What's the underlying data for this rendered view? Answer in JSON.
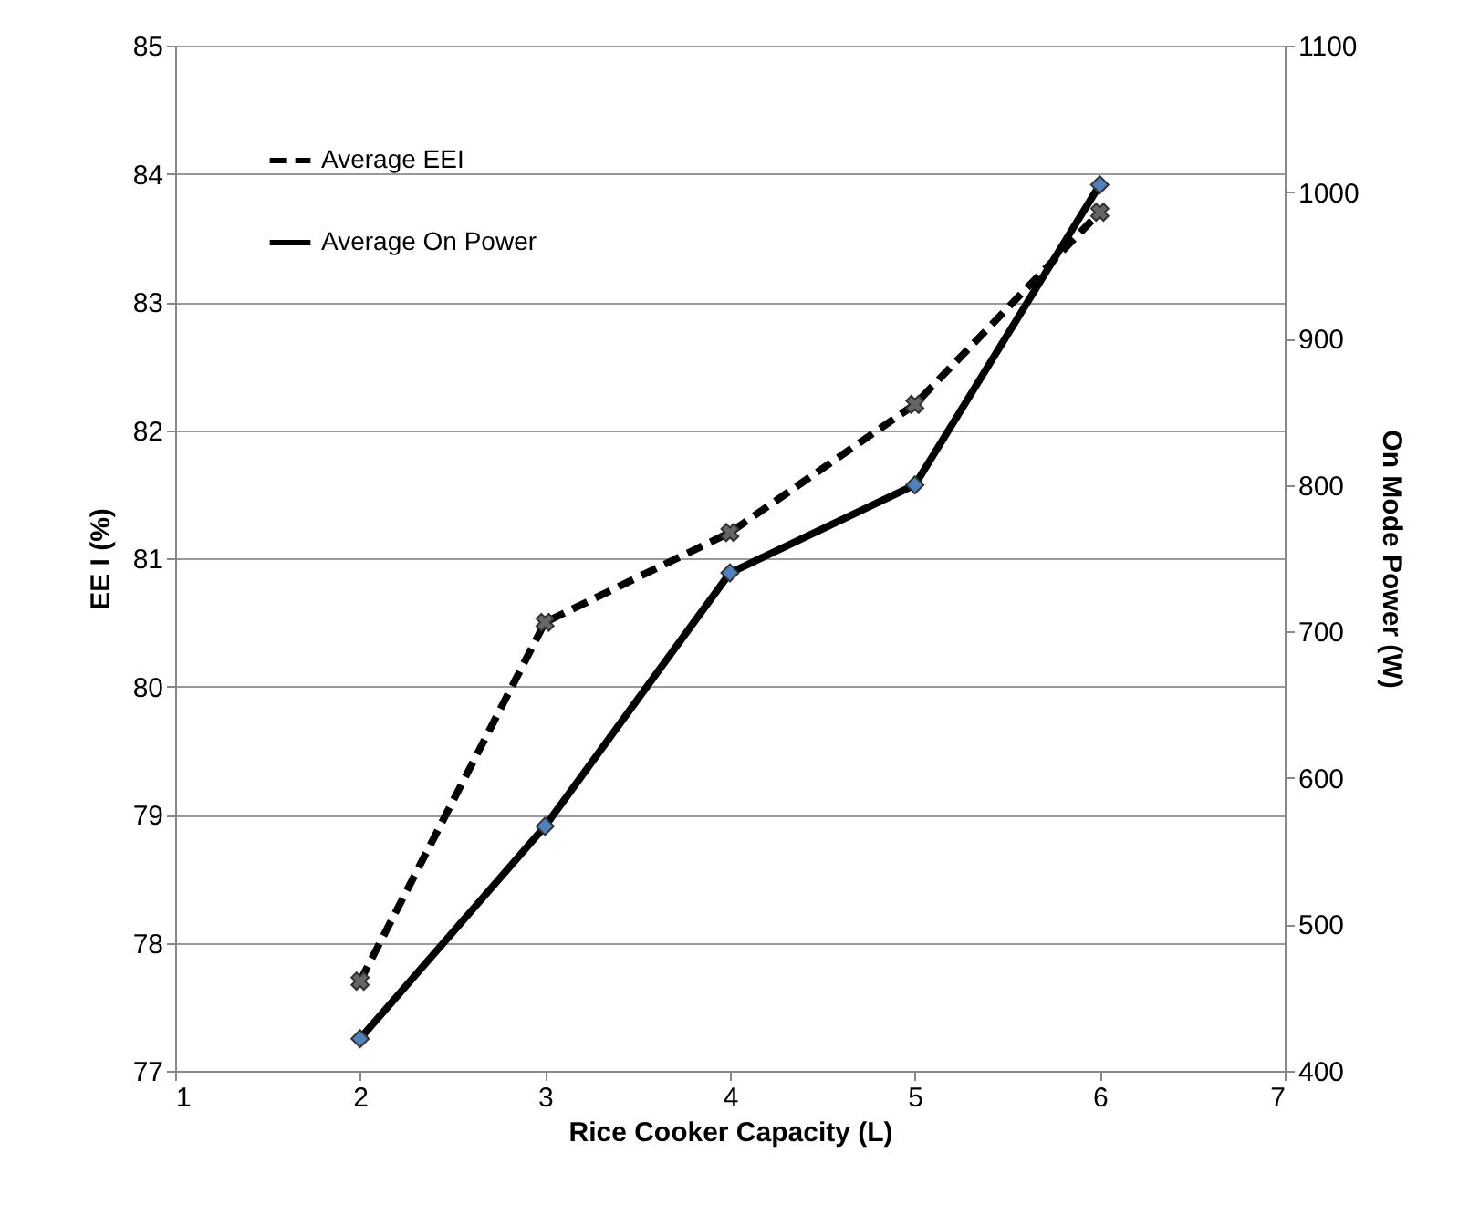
{
  "chart_data": {
    "type": "line",
    "xlabel": "Rice Cooker Capacity (L)",
    "ylabel": "EE I (%)",
    "y2label": "On Mode Power (W)",
    "x": [
      2,
      3,
      4,
      5,
      6
    ],
    "series": [
      {
        "name": "Average EEI",
        "color": "#000000",
        "values": [
          77.7,
          80.5,
          81.2,
          82.2,
          83.7
        ],
        "line_style": "dashed",
        "marker": "cross"
      },
      {
        "name": "Average On Power",
        "color": "#000000",
        "values": [
          422,
          567,
          740,
          800,
          1005
        ],
        "line_style": "solid",
        "marker": "diamond",
        "axis": "y2"
      }
    ],
    "xlim": [
      1,
      7
    ],
    "xticks": [
      1,
      2,
      3,
      4,
      5,
      6,
      7
    ],
    "ylim": [
      77,
      85
    ],
    "yticks": [
      77,
      78,
      79,
      80,
      81,
      82,
      83,
      84,
      85
    ],
    "y2lim": [
      400,
      1100
    ],
    "y2ticks": [
      400,
      500,
      600,
      700,
      800,
      900,
      1000,
      1100
    ],
    "grid": "y",
    "legend": "top left"
  }
}
